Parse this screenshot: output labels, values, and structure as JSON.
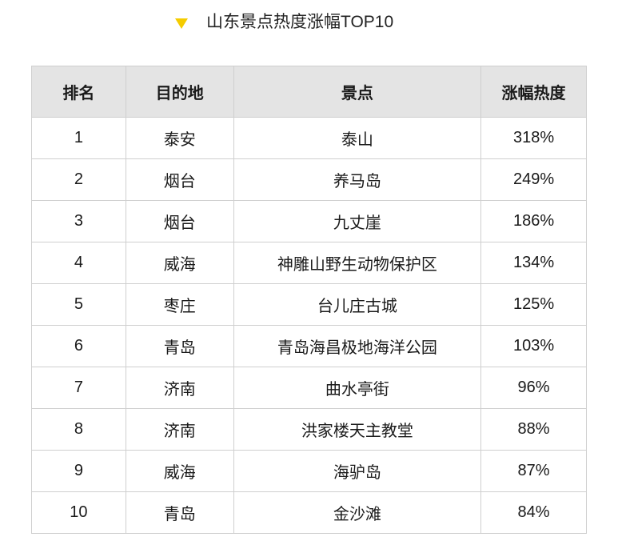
{
  "title": "山东景点热度涨幅TOP10",
  "accent_color": "#f5cc00",
  "header_bg": "#e4e4e4",
  "columns": [
    "排名",
    "目的地",
    "景点",
    "涨幅热度"
  ],
  "rows": [
    [
      "1",
      "泰安",
      "泰山",
      "318%"
    ],
    [
      "2",
      "烟台",
      "养马岛",
      "249%"
    ],
    [
      "3",
      "烟台",
      "九丈崖",
      "186%"
    ],
    [
      "4",
      "威海",
      "神雕山野生动物保护区",
      "134%"
    ],
    [
      "5",
      "枣庄",
      "台儿庄古城",
      "125%"
    ],
    [
      "6",
      "青岛",
      "青岛海昌极地海洋公园",
      "103%"
    ],
    [
      "7",
      "济南",
      "曲水亭街",
      "96%"
    ],
    [
      "8",
      "济南",
      "洪家楼天主教堂",
      "88%"
    ],
    [
      "9",
      "威海",
      "海驴岛",
      "87%"
    ],
    [
      "10",
      "青岛",
      "金沙滩",
      "84%"
    ]
  ]
}
